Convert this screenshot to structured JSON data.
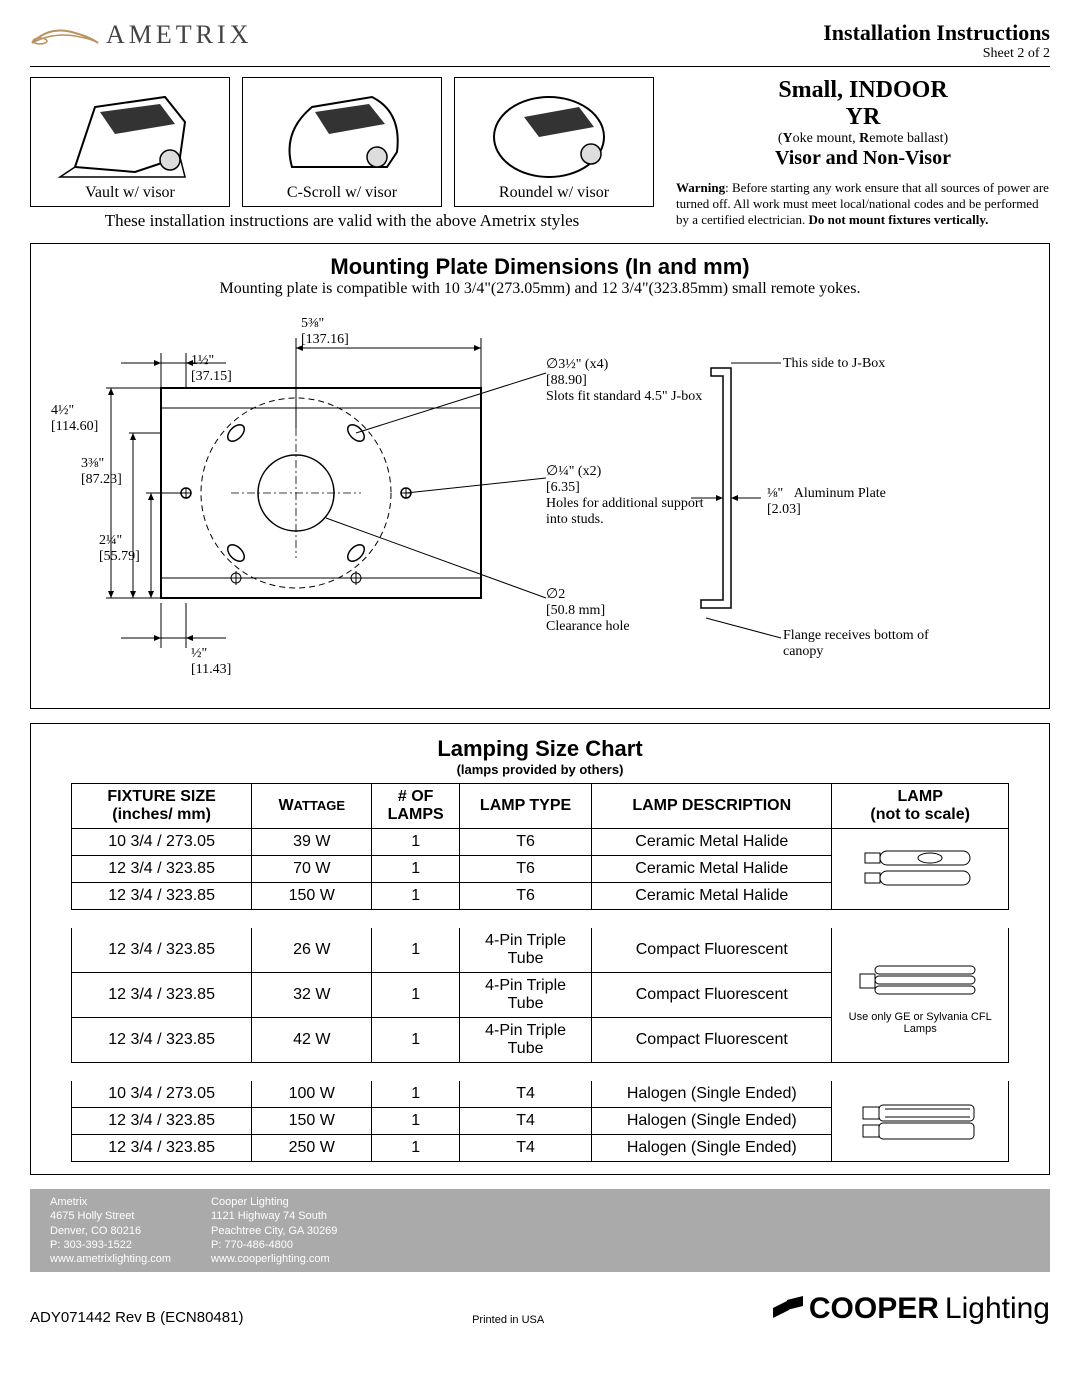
{
  "header": {
    "brand": "Ametrix",
    "title": "Installation Instructions",
    "sheet": "Sheet 2 of 2"
  },
  "product": {
    "name_line1": "Small, INDOOR",
    "name_line2": "YR",
    "sub": "(Yoke mount, Remote ballast)",
    "variant": "Visor and Non-Visor",
    "warning_label": "Warning",
    "warning_text": ": Before starting any work ensure that all sources of power are turned off. All work must meet local/national codes and be performed by a certified electrician. ",
    "warning_emph": "Do not mount fixtures vertically."
  },
  "styles": {
    "items": [
      {
        "caption": "Vault w/ visor"
      },
      {
        "caption": "C-Scroll w/ visor"
      },
      {
        "caption": "Roundel w/ visor"
      }
    ],
    "note": "These installation instructions are valid with the above Ametrix styles"
  },
  "diagram": {
    "title": "Mounting Plate Dimensions (In and mm)",
    "sub": "Mounting plate is compatible with  10 3/4\"(273.05mm) and 12 3/4\"(323.85mm) small remote yokes.",
    "dims": {
      "w_top": {
        "in": "5⅜\"",
        "mm": "[137.16]"
      },
      "w_left_small": {
        "in": "1½\"",
        "mm": "[37.15]"
      },
      "h_full": {
        "in": "4½\"",
        "mm": "[114.60]"
      },
      "h_mid": {
        "in": "3⅜\"",
        "mm": "[87.23]"
      },
      "h_low": {
        "in": "2¼\"",
        "mm": "[55.79]"
      },
      "w_bottom": {
        "in": "½\"",
        "mm": "[11.43]"
      }
    },
    "callouts": {
      "slots": {
        "dia": "∅3½\"  (x4)",
        "mm": "[88.90]",
        "text": "Slots fit standard 4.5\" J-box"
      },
      "holes": {
        "dia": "∅¼\"  (x2)",
        "mm": "[6.35]",
        "text": "Holes for additional support into studs."
      },
      "clearance": {
        "dia": "∅2",
        "mm": "[50.8 mm]",
        "text": "Clearance hole"
      },
      "jbox": "This side to J-Box",
      "plate": {
        "in": "⅛\"",
        "mm": "[2.03]",
        "text": "Aluminum Plate"
      },
      "flange": "Flange receives bottom of canopy"
    }
  },
  "chart": {
    "title": "Lamping Size Chart",
    "sub": "(lamps provided by others)",
    "headers": [
      "FIXTURE SIZE (inches/ mm)",
      "WATTAGE",
      "# OF LAMPS",
      "LAMP TYPE",
      "LAMP DESCRIPTION",
      "LAMP (not to scale)"
    ],
    "groups": [
      {
        "lamp_note": "",
        "rows": [
          [
            "10 3/4 / 273.05",
            "39 W",
            "1",
            "T6",
            "Ceramic Metal Halide"
          ],
          [
            "12 3/4 / 323.85",
            "70 W",
            "1",
            "T6",
            "Ceramic Metal Halide"
          ],
          [
            "12 3/4 / 323.85",
            "150 W",
            "1",
            "T6",
            "Ceramic Metal Halide"
          ]
        ]
      },
      {
        "lamp_note": "Use only GE or Sylvania CFL Lamps",
        "rows": [
          [
            "12 3/4 / 323.85",
            "26 W",
            "1",
            "4-Pin Triple Tube",
            "Compact Fluorescent"
          ],
          [
            "12 3/4 / 323.85",
            "32 W",
            "1",
            "4-Pin Triple Tube",
            "Compact Fluorescent"
          ],
          [
            "12 3/4 / 323.85",
            "42 W",
            "1",
            "4-Pin Triple Tube",
            "Compact Fluorescent"
          ]
        ]
      },
      {
        "lamp_note": "",
        "rows": [
          [
            "10 3/4 / 273.05",
            "100 W",
            "1",
            "T4",
            "Halogen (Single Ended)"
          ],
          [
            "12 3/4 / 323.85",
            "150 W",
            "1",
            "T4",
            "Halogen (Single Ended)"
          ],
          [
            "12 3/4 / 323.85",
            "250 W",
            "1",
            "T4",
            "Halogen (Single Ended)"
          ]
        ]
      }
    ]
  },
  "footer": {
    "addr1": {
      "name": "Ametrix",
      "street": "4675 Holly Street",
      "city": "Denver, CO 80216",
      "phone": "P: 303-393-1522",
      "web": "www.ametrixlighting.com"
    },
    "addr2": {
      "name": "Cooper Lighting",
      "street": "1121 Highway 74 South",
      "city": "Peachtree City, GA 30269",
      "phone": "P: 770-486-4800",
      "web": "www.cooperlighting.com"
    },
    "rev": "ADY071442  Rev B (ECN80481)",
    "printed": "Printed in USA",
    "cooper_bold": "COOPER",
    "cooper_light": "Lighting"
  }
}
